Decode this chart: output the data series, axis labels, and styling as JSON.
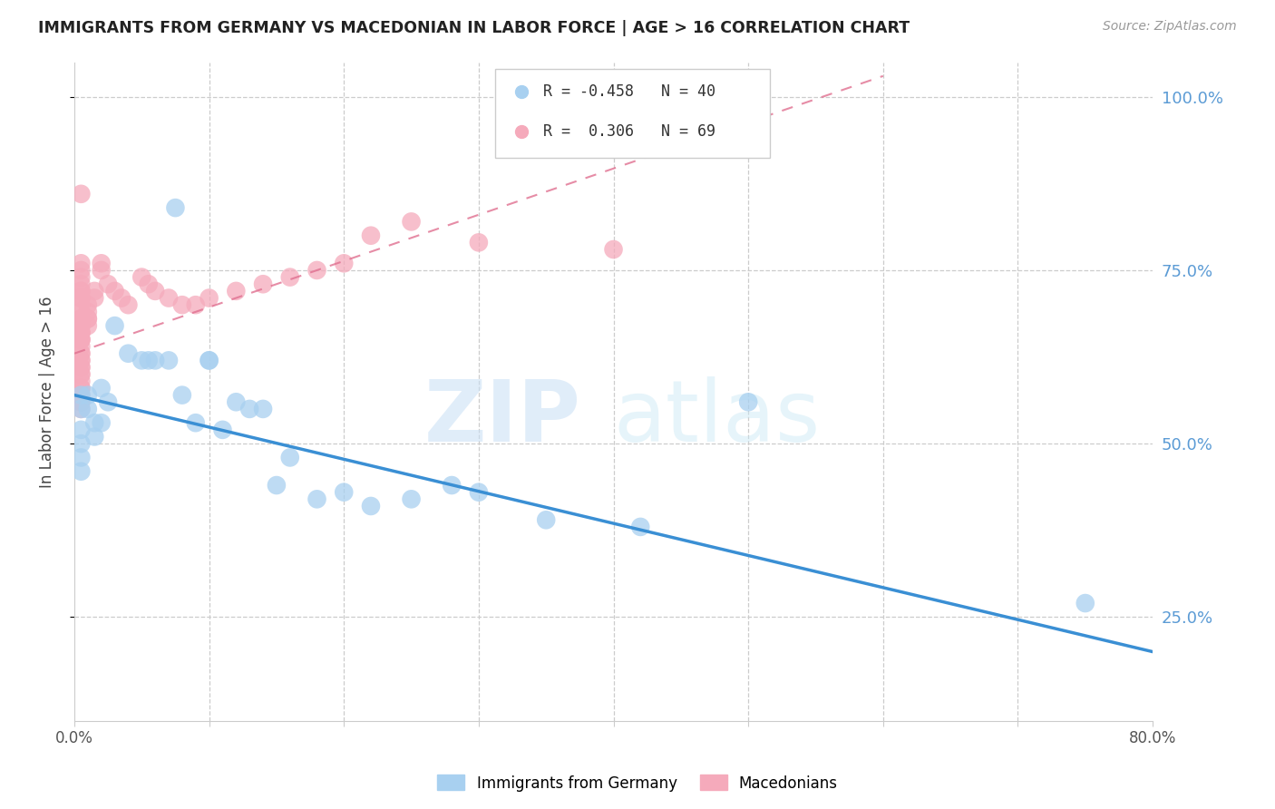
{
  "title": "IMMIGRANTS FROM GERMANY VS MACEDONIAN IN LABOR FORCE | AGE > 16 CORRELATION CHART",
  "source": "Source: ZipAtlas.com",
  "xlabel_blue": "Immigrants from Germany",
  "xlabel_pink": "Macedonians",
  "ylabel": "In Labor Force | Age > 16",
  "watermark_zip": "ZIP",
  "watermark_atlas": "atlas",
  "blue_R": -0.458,
  "blue_N": 40,
  "pink_R": 0.306,
  "pink_N": 69,
  "blue_color": "#A8D0F0",
  "pink_color": "#F5AABB",
  "blue_line_color": "#3A8FD4",
  "pink_line_color": "#E07090",
  "right_axis_color": "#5B9BD5",
  "xlim": [
    0.0,
    0.8
  ],
  "ylim": [
    0.1,
    1.05
  ],
  "yticks": [
    0.25,
    0.5,
    0.75,
    1.0
  ],
  "ytick_labels": [
    "25.0%",
    "50.0%",
    "75.0%",
    "100.0%"
  ],
  "blue_line_x0": 0.0,
  "blue_line_x1": 0.8,
  "blue_line_y0": 0.57,
  "blue_line_y1": 0.2,
  "pink_line_x0": 0.0,
  "pink_line_x1": 0.6,
  "pink_line_y0": 0.63,
  "pink_line_y1": 1.03,
  "blue_x": [
    0.005,
    0.005,
    0.005,
    0.005,
    0.005,
    0.005,
    0.01,
    0.01,
    0.015,
    0.015,
    0.02,
    0.02,
    0.025,
    0.03,
    0.04,
    0.05,
    0.055,
    0.06,
    0.07,
    0.075,
    0.08,
    0.09,
    0.1,
    0.1,
    0.11,
    0.12,
    0.13,
    0.14,
    0.15,
    0.16,
    0.18,
    0.2,
    0.22,
    0.25,
    0.28,
    0.3,
    0.35,
    0.42,
    0.5,
    0.75
  ],
  "blue_y": [
    0.57,
    0.55,
    0.52,
    0.5,
    0.48,
    0.46,
    0.57,
    0.55,
    0.53,
    0.51,
    0.58,
    0.53,
    0.56,
    0.67,
    0.63,
    0.62,
    0.62,
    0.62,
    0.62,
    0.84,
    0.57,
    0.53,
    0.62,
    0.62,
    0.52,
    0.56,
    0.55,
    0.55,
    0.44,
    0.48,
    0.42,
    0.43,
    0.41,
    0.42,
    0.44,
    0.43,
    0.39,
    0.38,
    0.56,
    0.27
  ],
  "pink_x": [
    0.005,
    0.005,
    0.005,
    0.005,
    0.005,
    0.005,
    0.005,
    0.005,
    0.005,
    0.005,
    0.005,
    0.005,
    0.005,
    0.005,
    0.005,
    0.005,
    0.005,
    0.005,
    0.005,
    0.005,
    0.005,
    0.005,
    0.005,
    0.005,
    0.005,
    0.005,
    0.005,
    0.005,
    0.005,
    0.005,
    0.005,
    0.005,
    0.005,
    0.005,
    0.005,
    0.005,
    0.005,
    0.005,
    0.005,
    0.005,
    0.01,
    0.01,
    0.01,
    0.01,
    0.01,
    0.015,
    0.015,
    0.02,
    0.02,
    0.025,
    0.03,
    0.035,
    0.04,
    0.05,
    0.055,
    0.06,
    0.07,
    0.08,
    0.09,
    0.1,
    0.12,
    0.14,
    0.16,
    0.18,
    0.2,
    0.22,
    0.25,
    0.3,
    0.4
  ],
  "pink_y": [
    0.69,
    0.68,
    0.68,
    0.67,
    0.67,
    0.66,
    0.66,
    0.65,
    0.65,
    0.64,
    0.63,
    0.63,
    0.62,
    0.62,
    0.61,
    0.61,
    0.6,
    0.6,
    0.59,
    0.58,
    0.58,
    0.57,
    0.56,
    0.56,
    0.55,
    0.68,
    0.68,
    0.67,
    0.66,
    0.65,
    0.72,
    0.71,
    0.7,
    0.75,
    0.74,
    0.73,
    0.72,
    0.71,
    0.76,
    0.86,
    0.7,
    0.69,
    0.68,
    0.68,
    0.67,
    0.72,
    0.71,
    0.76,
    0.75,
    0.73,
    0.72,
    0.71,
    0.7,
    0.74,
    0.73,
    0.72,
    0.71,
    0.7,
    0.7,
    0.71,
    0.72,
    0.73,
    0.74,
    0.75,
    0.76,
    0.8,
    0.82,
    0.79,
    0.78
  ]
}
